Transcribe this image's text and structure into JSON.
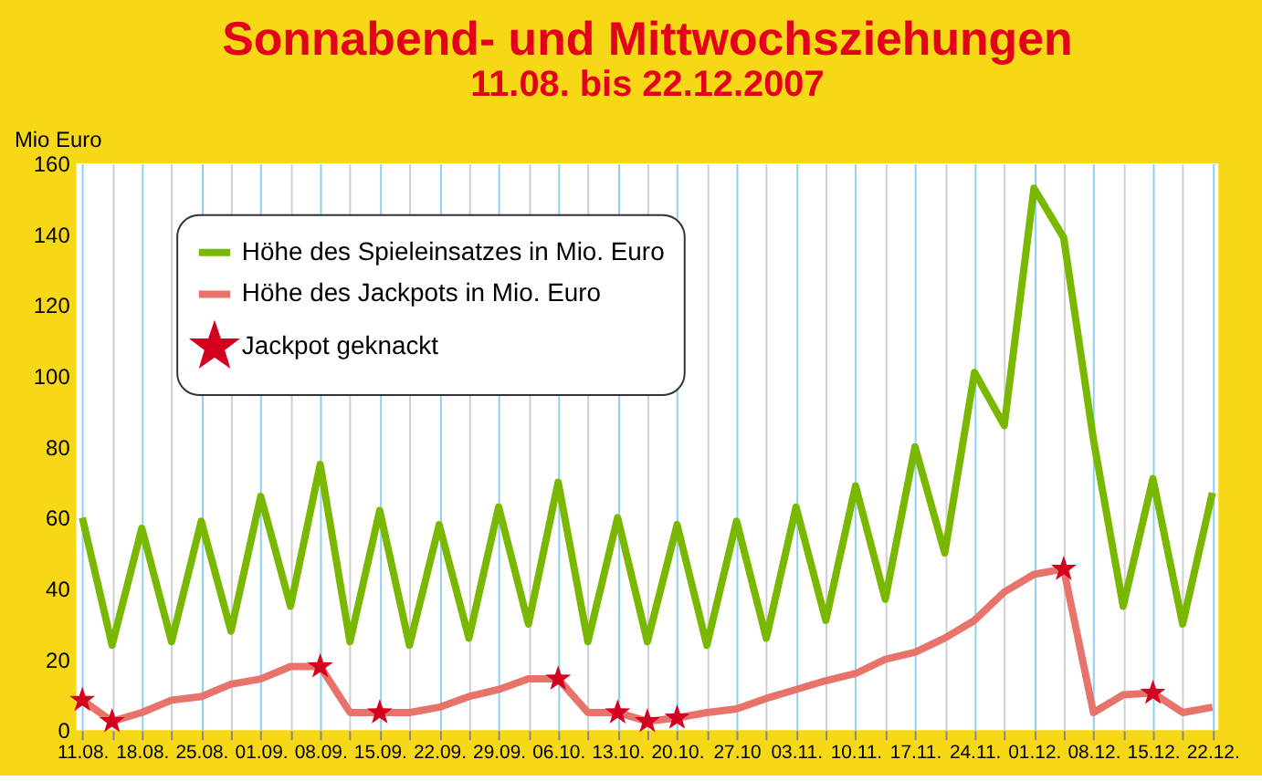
{
  "chart_data": {
    "type": "line",
    "title": "Sonnabend- und Mittwochsziehungen",
    "subtitle": "11.08. bis 22.12.2007",
    "ylabel": "Mio Euro",
    "categories": [
      "11.08.",
      null,
      "18.08.",
      null,
      "25.08.",
      null,
      "01.09.",
      null,
      "08.09.",
      null,
      "15.09.",
      null,
      "22.09.",
      null,
      "29.09.",
      null,
      "06.10.",
      null,
      "13.10.",
      null,
      "20.10.",
      null,
      "27.10",
      null,
      "03.11.",
      null,
      "10.11.",
      null,
      "17.11.",
      null,
      "24.11.",
      null,
      "01.12.",
      null,
      "08.12.",
      null,
      "15.12.",
      null,
      "22.12."
    ],
    "ylim": [
      0,
      160
    ],
    "yticks": [
      0,
      20,
      40,
      60,
      80,
      100,
      120,
      140,
      160
    ],
    "grid": "x",
    "legend": "top left",
    "line_style": "solid",
    "series": [
      {
        "name": "Höhe des Spieleinsatzes in Mio. Euro",
        "color": "#7ab800",
        "marker": "none",
        "values": [
          60,
          24,
          57,
          25,
          59,
          28,
          66,
          35,
          75,
          25,
          62,
          24,
          58,
          26,
          63,
          30,
          70,
          25,
          60,
          25,
          58,
          24,
          59,
          26,
          63,
          31,
          69,
          37,
          80,
          50,
          101,
          86,
          153,
          139,
          82,
          35,
          71,
          30,
          67
        ]
      },
      {
        "name": "Höhe des Jackpots in Mio. Euro",
        "color": "#e8736a",
        "marker": "none",
        "values": [
          8.5,
          2.5,
          5,
          8.5,
          9.5,
          13,
          14.5,
          18,
          18,
          5,
          5,
          5,
          6.5,
          9.5,
          11.5,
          14.5,
          14.5,
          5,
          5,
          2.5,
          3.5,
          5,
          6,
          9,
          11.5,
          14,
          16,
          20,
          22,
          26,
          31,
          39,
          44,
          45.5,
          5,
          10,
          10.5,
          5,
          6.5
        ]
      },
      {
        "name": "Jackpot geknackt",
        "color": "#d40020",
        "type": "scatter",
        "marker": "star",
        "values": [
          8.5,
          2.5,
          null,
          null,
          null,
          null,
          null,
          null,
          18,
          null,
          5,
          null,
          null,
          null,
          null,
          null,
          14.5,
          null,
          5,
          2.5,
          3.5,
          null,
          null,
          null,
          null,
          null,
          null,
          null,
          null,
          null,
          null,
          null,
          null,
          45.5,
          null,
          null,
          10.5,
          null,
          null
        ]
      }
    ]
  }
}
